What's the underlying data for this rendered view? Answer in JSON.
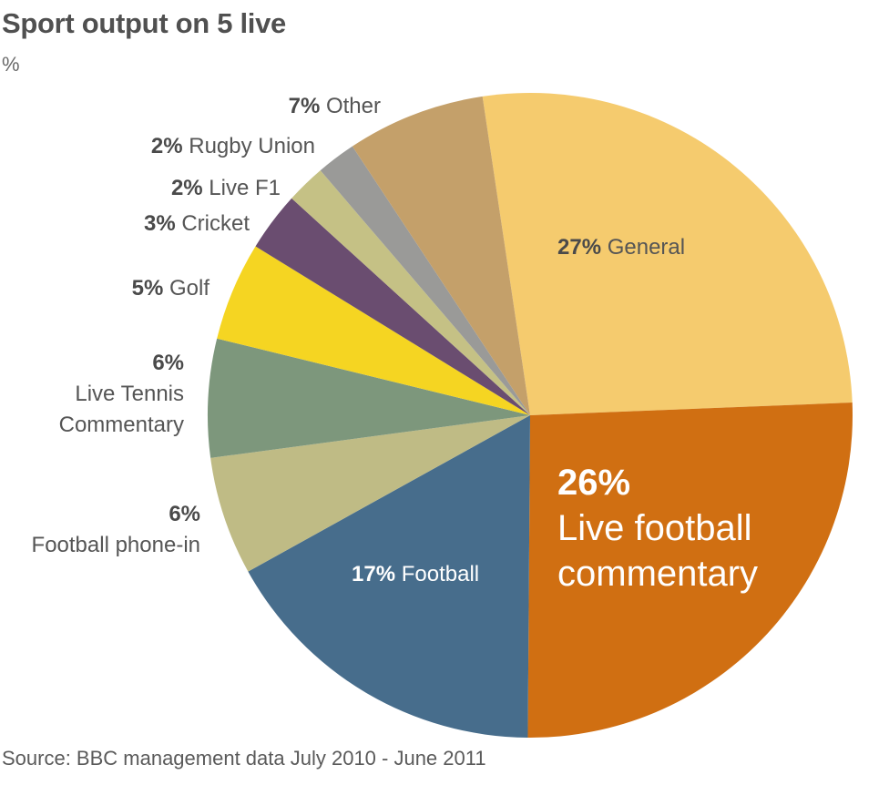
{
  "header": {
    "title": "Sport output on 5 live",
    "unit": "%"
  },
  "footer": {
    "source": "Source: BBC management data July 2010 - June 2011"
  },
  "chart_data": {
    "type": "pie",
    "title": "Sport output on 5 live",
    "unit": "%",
    "source": "Source: BBC management data July 2010 - June 2011",
    "categories": [
      "General",
      "Live football commentary",
      "Football",
      "Football phone-in",
      "Live Tennis Commentary",
      "Golf",
      "Cricket",
      "Live F1",
      "Rugby Union",
      "Other"
    ],
    "values": [
      27,
      26,
      17,
      6,
      6,
      5,
      3,
      2,
      2,
      7
    ],
    "colors": [
      "#f5cb6e",
      "#d06f12",
      "#476d8c",
      "#bfbb85",
      "#7d977c",
      "#f5d522",
      "#6a4d70",
      "#c5c185",
      "#9a9a98",
      "#c4a06a"
    ],
    "start_angle_deg": -85,
    "direction": "clockwise",
    "legend": "none (direct labels)"
  },
  "labels": [
    {
      "pct": "27%",
      "name": "General"
    },
    {
      "pct": "26%",
      "name1": "Live football",
      "name2": "commentary"
    },
    {
      "pct": "17%",
      "name": "Football"
    },
    {
      "pct": "6%",
      "name": "Football phone-in"
    },
    {
      "pct": "6%",
      "name1": "Live Tennis",
      "name2": "Commentary"
    },
    {
      "pct": "5%",
      "name": "Golf"
    },
    {
      "pct": "3%",
      "name": "Cricket"
    },
    {
      "pct": "2%",
      "name": "Live F1"
    },
    {
      "pct": "2%",
      "name": "Rugby Union"
    },
    {
      "pct": "7%",
      "name": "Other"
    }
  ]
}
